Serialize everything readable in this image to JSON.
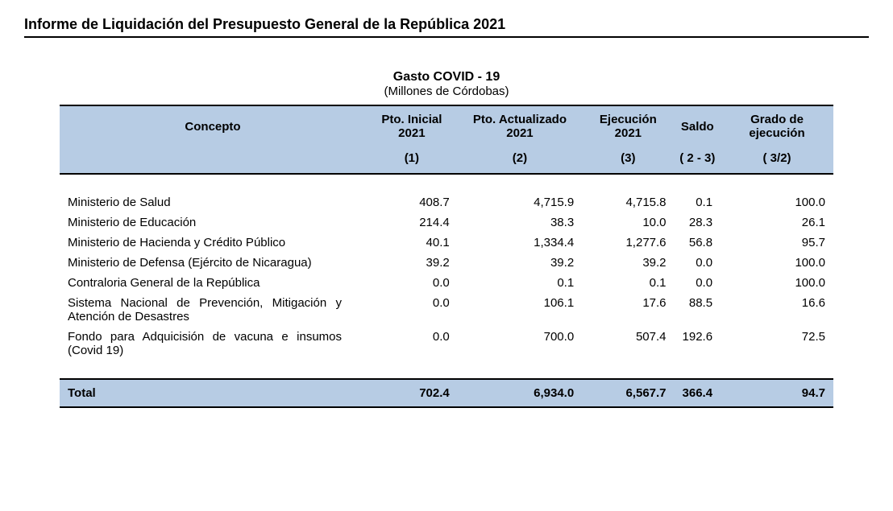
{
  "doc_title": "Informe de Liquidación del Presupuesto General de la República 2021",
  "table": {
    "title": "Gasto COVID - 19",
    "subtitle": "(Millones de Córdobas)",
    "headers": {
      "concepto": "Concepto",
      "col1": "Pto. Inicial 2021",
      "col2": "Pto. Actualizado 2021",
      "col3": "Ejecución 2021",
      "col4": "Saldo",
      "col5": "Grado de ejecución"
    },
    "subheaders": {
      "c1": "(1)",
      "c2": "(2)",
      "c3": "(3)",
      "c4": "( 2 - 3)",
      "c5": "( 3/2)"
    },
    "rows": [
      {
        "concepto": "Ministerio de Salud",
        "v1": "408.7",
        "v2": "4,715.9",
        "v3": "4,715.8",
        "v4": "0.1",
        "v5": "100.0"
      },
      {
        "concepto": "Ministerio de Educación",
        "v1": "214.4",
        "v2": "38.3",
        "v3": "10.0",
        "v4": "28.3",
        "v5": "26.1"
      },
      {
        "concepto": "Ministerio de Hacienda y Crédito Público",
        "v1": "40.1",
        "v2": "1,334.4",
        "v3": "1,277.6",
        "v4": "56.8",
        "v5": "95.7"
      },
      {
        "concepto": "Ministerio de Defensa (Ejército de Nicaragua)",
        "v1": "39.2",
        "v2": "39.2",
        "v3": "39.2",
        "v4": "0.0",
        "v5": "100.0"
      },
      {
        "concepto": "Contraloria General de la República",
        "v1": "0.0",
        "v2": "0.1",
        "v3": "0.1",
        "v4": "0.0",
        "v5": "100.0"
      },
      {
        "concepto": "Sistema Nacional de Prevención, Mitigación y Atención de Desastres",
        "v1": "0.0",
        "v2": "106.1",
        "v3": "17.6",
        "v4": "88.5",
        "v5": "16.6"
      },
      {
        "concepto": "Fondo para Adquicisión de vacuna e insumos (Covid 19)",
        "v1": "0.0",
        "v2": "700.0",
        "v3": "507.4",
        "v4": "192.6",
        "v5": "72.5"
      }
    ],
    "total": {
      "label": "Total",
      "v1": "702.4",
      "v2": "6,934.0",
      "v3": "6,567.7",
      "v4": "366.4",
      "v5": "94.7"
    },
    "header_bg": "#b7cce4"
  }
}
